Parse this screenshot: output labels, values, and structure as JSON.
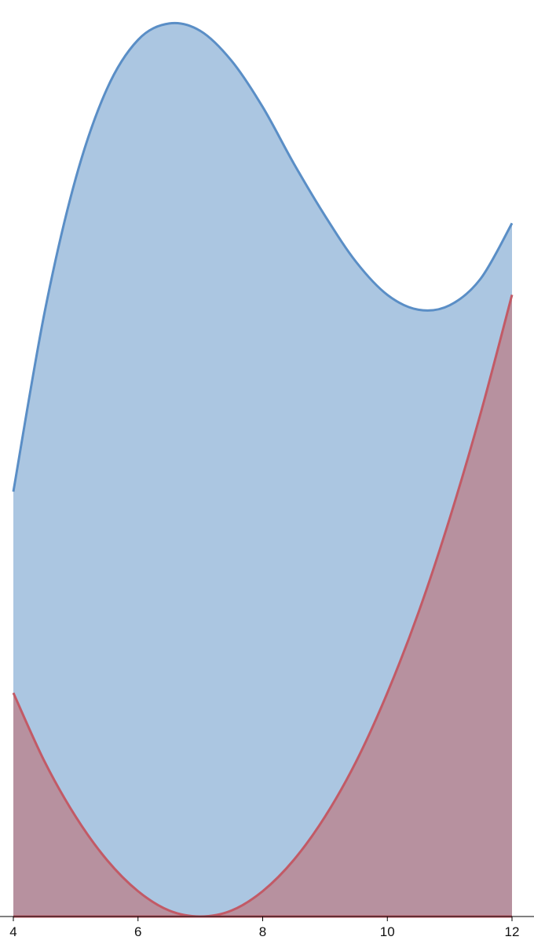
{
  "chart_data": {
    "type": "area",
    "xlim": [
      4,
      12
    ],
    "ylim": [
      0,
      6
    ],
    "x_ticks": [
      4,
      6,
      8,
      10,
      12
    ],
    "x_tick_labels": [
      "4",
      "6",
      "8",
      "10",
      "12"
    ],
    "grid": false,
    "legend": "none",
    "series": [
      {
        "color": "#5a8ec6",
        "fill": "#abc6e1",
        "x": [
          4,
          4.5,
          5,
          5.5,
          6,
          6.5,
          7,
          7.5,
          8,
          8.5,
          9,
          9.5,
          10,
          10.5,
          11,
          11.5,
          12
        ],
        "y": [
          2.85,
          4.05,
          4.95,
          5.55,
          5.88,
          5.99,
          5.94,
          5.74,
          5.43,
          5.05,
          4.7,
          4.39,
          4.17,
          4.07,
          4.1,
          4.28,
          4.65
        ]
      },
      {
        "color": "#c25a66",
        "fill": "#b7919f",
        "x": [
          4,
          4.5,
          5,
          5.5,
          6,
          6.5,
          7,
          7.5,
          8,
          8.5,
          9,
          9.5,
          10,
          10.5,
          11,
          11.5,
          12
        ],
        "y": [
          1.5,
          1.04,
          0.67,
          0.38,
          0.17,
          0.04,
          0,
          0.04,
          0.17,
          0.38,
          0.67,
          1.04,
          1.5,
          2.04,
          2.67,
          3.38,
          4.17
        ]
      }
    ]
  }
}
